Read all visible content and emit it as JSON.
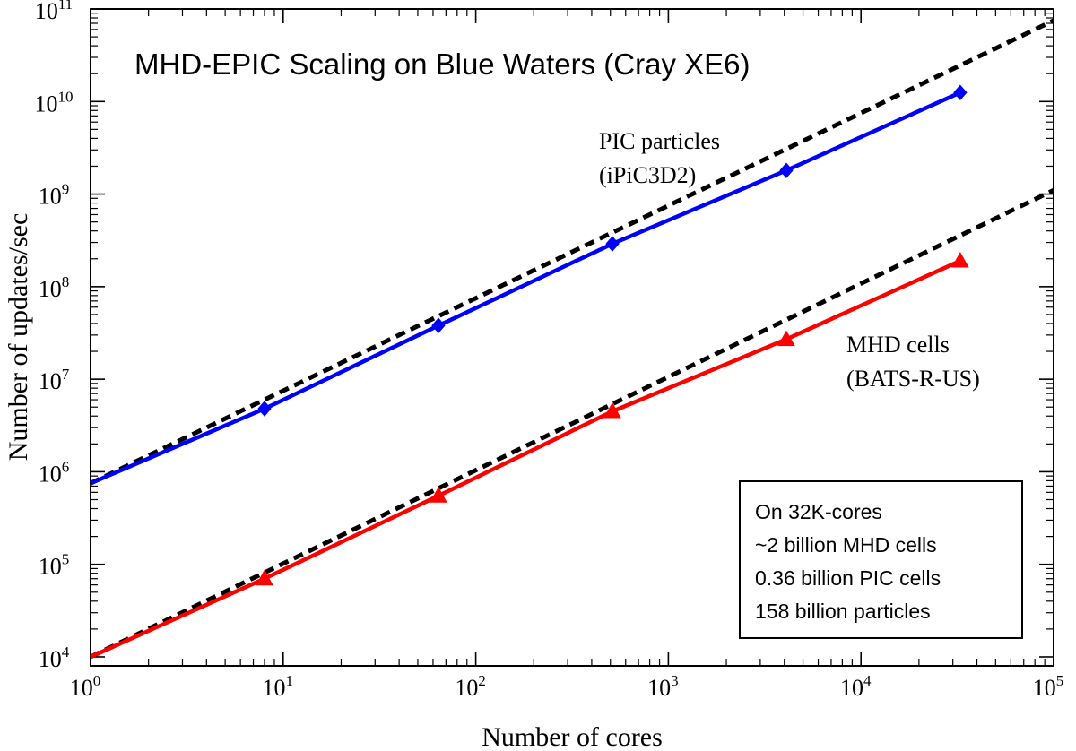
{
  "chart_data": {
    "type": "line",
    "title": "MHD-EPIC Scaling on Blue Waters (Cray XE6)",
    "xlabel": "Number of cores",
    "ylabel": "Number of updates/sec",
    "xscale": "log",
    "yscale": "log",
    "xlim": [
      1,
      100000
    ],
    "ylim": [
      8000,
      100000000000
    ],
    "x_ticks": [
      {
        "base": "10",
        "exp": "0",
        "value": 1
      },
      {
        "base": "10",
        "exp": "1",
        "value": 10
      },
      {
        "base": "10",
        "exp": "2",
        "value": 100
      },
      {
        "base": "10",
        "exp": "3",
        "value": 1000
      },
      {
        "base": "10",
        "exp": "4",
        "value": 10000
      },
      {
        "base": "10",
        "exp": "5",
        "value": 100000
      }
    ],
    "y_ticks": [
      {
        "base": "10",
        "exp": "4",
        "value": 10000
      },
      {
        "base": "10",
        "exp": "5",
        "value": 100000
      },
      {
        "base": "10",
        "exp": "6",
        "value": 1000000
      },
      {
        "base": "10",
        "exp": "7",
        "value": 10000000
      },
      {
        "base": "10",
        "exp": "8",
        "value": 100000000
      },
      {
        "base": "10",
        "exp": "9",
        "value": 1000000000
      },
      {
        "base": "10",
        "exp": "10",
        "value": 10000000000
      },
      {
        "base": "10",
        "exp": "11",
        "value": 100000000000
      }
    ],
    "series": [
      {
        "color": "#0000ff",
        "marker": "diamond",
        "x": [
          1,
          8,
          64,
          512,
          4096,
          32768
        ],
        "y": [
          750000,
          4800000,
          38000000,
          290000000,
          1800000000,
          12500000000
        ],
        "label_lines": [
          "PIC particles",
          "(iPiC3D2)"
        ]
      },
      {
        "color": "#ff0000",
        "marker": "triangle",
        "x": [
          1,
          8,
          64,
          512,
          4096,
          32768
        ],
        "y": [
          10000,
          70000,
          550000,
          4500000,
          27000000,
          190000000
        ],
        "label_lines": [
          "MHD cells",
          "(BATS-R-US)"
        ]
      }
    ],
    "reference_lines": [
      {
        "style": "dashed",
        "color": "#000000",
        "x": [
          1,
          100000
        ],
        "y": [
          750000,
          75000000000
        ]
      },
      {
        "style": "dashed",
        "color": "#000000",
        "x": [
          1,
          100000
        ],
        "y": [
          10000,
          1100000000
        ]
      }
    ],
    "annotation_box": {
      "lines": [
        "On 32K-cores",
        "~2 billion MHD cells",
        "0.36 billion PIC cells",
        "158 billion particles"
      ]
    }
  }
}
